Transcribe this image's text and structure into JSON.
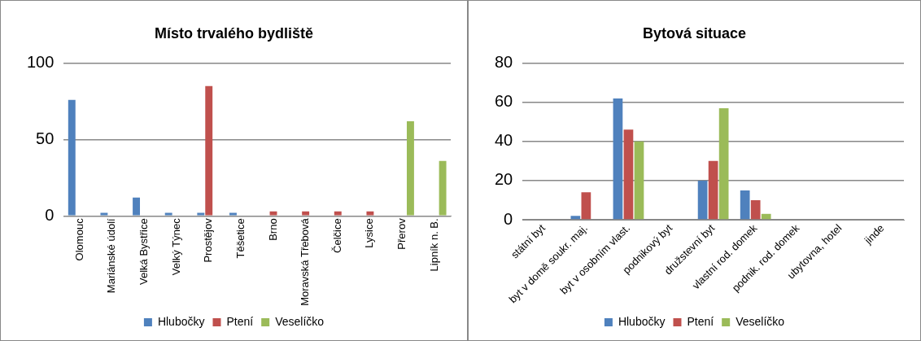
{
  "chart_data": [
    {
      "type": "bar",
      "title": "Místo trvalého bydliště",
      "categories": [
        "Olomouc",
        "Mariánské údolí",
        "Velká Bystřice",
        "Velký Týnec",
        "Prostějov",
        "Těšetice",
        "Brno",
        "Moravská Třebová",
        "Čelčice",
        "Lysice",
        "Přerov",
        "Lipník n. B."
      ],
      "series": [
        {
          "name": "Hlubočky",
          "color": "#4f81bd",
          "values": [
            76,
            2,
            12,
            2,
            2,
            2,
            0,
            0,
            0,
            0,
            0,
            0
          ]
        },
        {
          "name": "Ptení",
          "color": "#c0504d",
          "values": [
            0,
            0,
            0,
            0,
            85,
            0,
            3,
            3,
            3,
            3,
            0,
            0
          ]
        },
        {
          "name": "Veselíčko",
          "color": "#9bbb59",
          "values": [
            0,
            0,
            0,
            0,
            0,
            0,
            0,
            0,
            0,
            0,
            62,
            36
          ]
        }
      ],
      "ylim": [
        0,
        100
      ],
      "yticks": [
        0,
        50,
        100
      ],
      "grid": "y",
      "legend": "bottom"
    },
    {
      "type": "bar",
      "title": "Bytová situace",
      "categories": [
        "státní byt",
        "byt v domě soukr. maj.",
        "byt v osobním vlast.",
        "podnikový byt",
        "družstevní byt",
        "vlastní rod. domek",
        "podnik. rod. domek",
        "ubytovna, hotel",
        "jinde"
      ],
      "series": [
        {
          "name": "Hlubočky",
          "color": "#4f81bd",
          "values": [
            0,
            2,
            62,
            0,
            20,
            15,
            0,
            0,
            0
          ]
        },
        {
          "name": "Ptení",
          "color": "#c0504d",
          "values": [
            0,
            14,
            46,
            0,
            30,
            10,
            0,
            0,
            0
          ]
        },
        {
          "name": "Veselíčko",
          "color": "#9bbb59",
          "values": [
            0,
            0,
            40,
            0,
            57,
            3,
            0,
            0,
            0
          ]
        }
      ],
      "ylim": [
        0,
        80
      ],
      "yticks": [
        0,
        20,
        40,
        60,
        80
      ],
      "grid": "y",
      "legend": "bottom"
    }
  ]
}
